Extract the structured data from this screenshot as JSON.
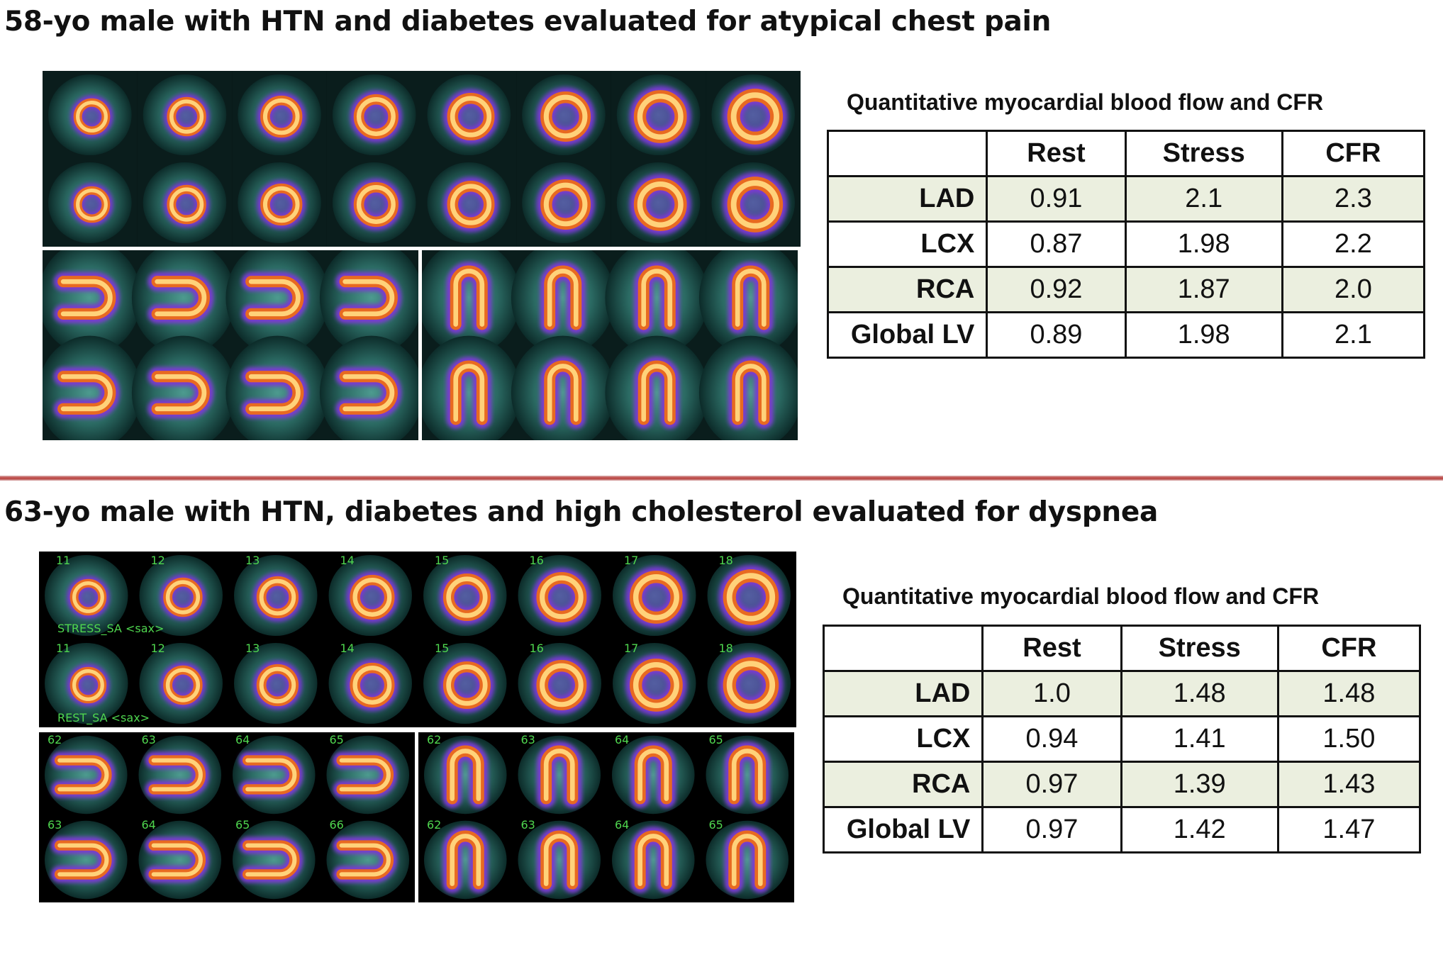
{
  "cases": [
    {
      "title": "58-yo male with HTN and diabetes evaluated for atypical chest pain",
      "table_title": "Quantitative myocardial blood flow and CFR",
      "columns": [
        "Rest",
        "Stress",
        "CFR"
      ],
      "rows": [
        {
          "label": "LAD",
          "values": [
            "0.91",
            "2.1",
            "2.3"
          ]
        },
        {
          "label": "LCX",
          "values": [
            "0.87",
            "1.98",
            "2.2"
          ]
        },
        {
          "label": "RCA",
          "values": [
            "0.92",
            "1.87",
            "2.0"
          ]
        },
        {
          "label": "Global LV",
          "values": [
            "0.89",
            "1.98",
            "2.1"
          ]
        }
      ]
    },
    {
      "title": "63-yo male with HTN, diabetes and high cholesterol evaluated for dyspnea",
      "table_title": "Quantitative myocardial blood flow and CFR",
      "columns": [
        "Rest",
        "Stress",
        "CFR"
      ],
      "rows": [
        {
          "label": "LAD",
          "values": [
            "1.0",
            "1.48",
            "1.48"
          ]
        },
        {
          "label": "LCX",
          "values": [
            "0.94",
            "1.41",
            "1.50"
          ]
        },
        {
          "label": "RCA",
          "values": [
            "0.97",
            "1.39",
            "1.43"
          ]
        },
        {
          "label": "Global LV",
          "values": [
            "0.97",
            "1.42",
            "1.47"
          ]
        }
      ]
    }
  ],
  "image_overlays": {
    "sa_stress_numbers": [
      "11",
      "12",
      "13",
      "14",
      "15",
      "16",
      "17",
      "18"
    ],
    "sa_rest_numbers": [
      "11",
      "12",
      "13",
      "14",
      "15",
      "16",
      "17",
      "18"
    ],
    "sa_stress_label": "STRESS_SA <sax>",
    "sa_rest_label": "REST_SA <sax>",
    "hla_top_numbers": [
      "62",
      "63",
      "64",
      "65"
    ],
    "hla_bottom_numbers": [
      "63",
      "64",
      "65",
      "66"
    ],
    "vla_top_numbers": [
      "62",
      "63",
      "64",
      "65"
    ],
    "vla_bottom_numbers": [
      "62",
      "63",
      "64",
      "65"
    ]
  },
  "colors": {
    "divider": "#c0504d",
    "table_row_shade": "#ebefdf",
    "overlay_text": "#4fd64f"
  }
}
